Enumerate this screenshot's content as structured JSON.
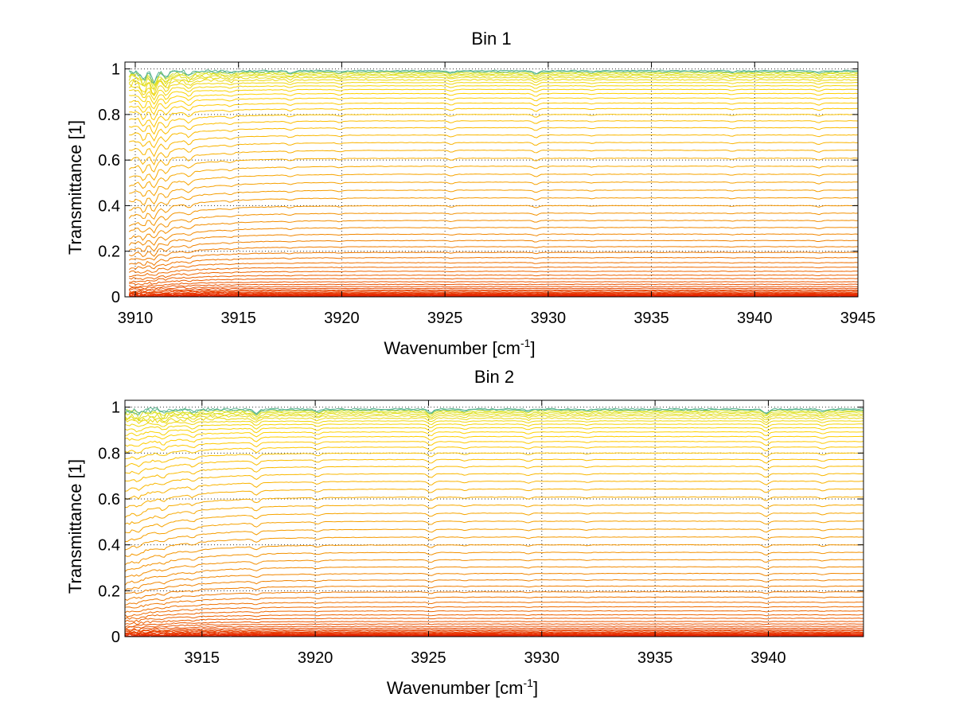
{
  "chart_data": [
    {
      "type": "line",
      "title": "Bin 1",
      "xlabel": "Wavenumber [cm",
      "xlabel_sup": "-1",
      "xlabel_end": "]",
      "ylabel": "Transmittance [1]",
      "xlim": [
        3909.5,
        3945
      ],
      "ylim": [
        0,
        1.03
      ],
      "xticks": [
        3910,
        3915,
        3920,
        3925,
        3930,
        3935,
        3940,
        3945
      ],
      "yticks": [
        0,
        0.2,
        0.4,
        0.6,
        0.8,
        1
      ],
      "ytick_labels": [
        "0",
        "0.2",
        "0.4",
        "0.6",
        "0.8",
        "1"
      ],
      "xtick_labels": [
        "3910",
        "3915",
        "3920",
        "3925",
        "3930",
        "3935",
        "3940",
        "3945"
      ],
      "grid": true,
      "x_start": 3909.7,
      "x_end": 3945,
      "baseline_levels": [
        0.002,
        0.004,
        0.006,
        0.008,
        0.01,
        0.013,
        0.016,
        0.02,
        0.025,
        0.03,
        0.037,
        0.045,
        0.055,
        0.066,
        0.08,
        0.095,
        0.112,
        0.13,
        0.15,
        0.172,
        0.195,
        0.22,
        0.247,
        0.275,
        0.304,
        0.335,
        0.367,
        0.4,
        0.434,
        0.468,
        0.503,
        0.538,
        0.573,
        0.608,
        0.643,
        0.677,
        0.71,
        0.742,
        0.772,
        0.8,
        0.826,
        0.85,
        0.872,
        0.892,
        0.91,
        0.926,
        0.94,
        0.952,
        0.962,
        0.97,
        0.977,
        0.983,
        0.988,
        0.992
      ],
      "absorption_lines": [
        {
          "x": 3910.4,
          "depth": 0.09
        },
        {
          "x": 3910.9,
          "depth": 0.12
        },
        {
          "x": 3911.5,
          "depth": 0.07
        },
        {
          "x": 3912.6,
          "depth": 0.05
        },
        {
          "x": 3914.6,
          "depth": 0.02
        },
        {
          "x": 3917.5,
          "depth": 0.02
        },
        {
          "x": 3919.9,
          "depth": 0.015
        },
        {
          "x": 3925.3,
          "depth": 0.02
        },
        {
          "x": 3929.4,
          "depth": 0.03
        },
        {
          "x": 3932.1,
          "depth": 0.01
        },
        {
          "x": 3938.9,
          "depth": 0.012
        },
        {
          "x": 3943.1,
          "depth": 0.02
        }
      ],
      "color_stops": [
        "#e41a00",
        "#f08000",
        "#ffd000",
        "#9aff60",
        "#1060c0"
      ]
    },
    {
      "type": "line",
      "title": "Bin 2",
      "xlabel": "Wavenumber [cm",
      "xlabel_sup": "-1",
      "xlabel_end": "]",
      "ylabel": "Transmittance [1]",
      "xlim": [
        3911.6,
        3944.2
      ],
      "ylim": [
        0,
        1.03
      ],
      "xticks": [
        3915,
        3920,
        3925,
        3930,
        3935,
        3940
      ],
      "yticks": [
        0,
        0.2,
        0.4,
        0.6,
        0.8,
        1
      ],
      "ytick_labels": [
        "0",
        "0.2",
        "0.4",
        "0.6",
        "0.8",
        "1"
      ],
      "xtick_labels": [
        "3915",
        "3920",
        "3925",
        "3930",
        "3935",
        "3940"
      ],
      "grid": true,
      "x_start": 3911.6,
      "x_end": 3944.2,
      "baseline_levels": [
        0.002,
        0.004,
        0.006,
        0.008,
        0.01,
        0.013,
        0.016,
        0.02,
        0.025,
        0.03,
        0.037,
        0.045,
        0.055,
        0.066,
        0.08,
        0.095,
        0.112,
        0.13,
        0.15,
        0.172,
        0.195,
        0.22,
        0.247,
        0.275,
        0.304,
        0.335,
        0.367,
        0.4,
        0.434,
        0.468,
        0.503,
        0.538,
        0.573,
        0.608,
        0.643,
        0.677,
        0.71,
        0.742,
        0.772,
        0.8,
        0.826,
        0.85,
        0.872,
        0.892,
        0.91,
        0.926,
        0.94,
        0.952,
        0.962,
        0.97,
        0.977,
        0.983,
        0.988,
        0.992
      ],
      "absorption_lines": [
        {
          "x": 3912.2,
          "depth": 0.03
        },
        {
          "x": 3913.3,
          "depth": 0.035
        },
        {
          "x": 3914.6,
          "depth": 0.03
        },
        {
          "x": 3917.4,
          "depth": 0.045
        },
        {
          "x": 3920.1,
          "depth": 0.025
        },
        {
          "x": 3925.1,
          "depth": 0.04
        },
        {
          "x": 3926.6,
          "depth": 0.015
        },
        {
          "x": 3929.4,
          "depth": 0.02
        },
        {
          "x": 3932.0,
          "depth": 0.012
        },
        {
          "x": 3939.9,
          "depth": 0.04
        },
        {
          "x": 3942.4,
          "depth": 0.02
        }
      ],
      "color_stops": [
        "#e41a00",
        "#f08000",
        "#ffd000",
        "#9aff60",
        "#1060c0"
      ]
    }
  ]
}
